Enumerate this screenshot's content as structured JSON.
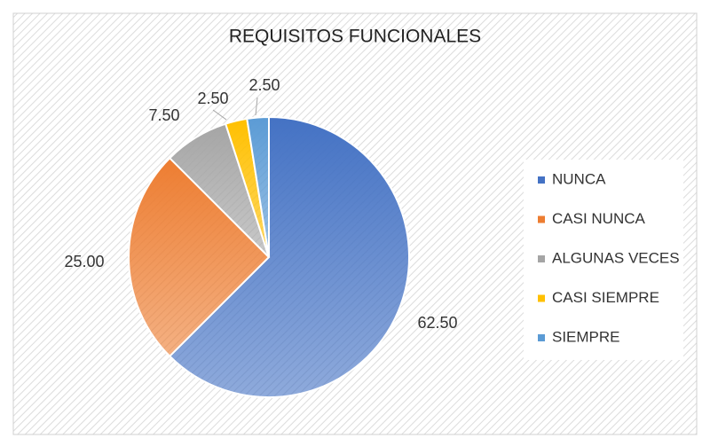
{
  "chart_data": {
    "type": "pie",
    "title": "REQUISITOS FUNCIONALES",
    "categories": [
      "NUNCA",
      "CASI NUNCA",
      "ALGUNAS VECES",
      "CASI SIEMPRE",
      "SIEMPRE"
    ],
    "values": [
      62.5,
      25,
      7.5,
      2.5,
      2.5
    ],
    "value_labels": [
      "62.50",
      "25.00",
      "7.50",
      "2.50",
      "2.50"
    ],
    "colors": [
      "#4472c4",
      "#ed7d31",
      "#a5a5a5",
      "#ffc000",
      "#5b9bd5"
    ],
    "legend": "right"
  }
}
